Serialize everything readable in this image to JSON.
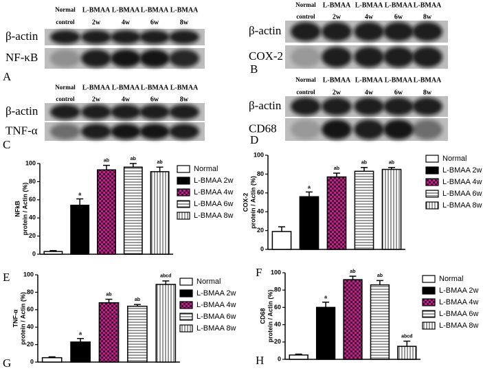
{
  "blots": [
    {
      "panel": "A",
      "columns": [
        [
          "Normal",
          "control"
        ],
        [
          "L-BMAA",
          "2w"
        ],
        [
          "L-BMAA",
          "4w"
        ],
        [
          "L-BMAA",
          "6w"
        ],
        [
          "L-BMAA",
          "8w"
        ]
      ],
      "rows": [
        "β-actin",
        "NF-κB"
      ]
    },
    {
      "panel": "B",
      "columns": [
        [
          "Normal",
          "control"
        ],
        [
          "L-BMAA",
          "2w"
        ],
        [
          "L-BMAA",
          "4w"
        ],
        [
          "L-BMAA",
          "6w"
        ],
        [
          "L-BMAA",
          "8w"
        ]
      ],
      "rows": [
        "β-actin",
        "COX-2"
      ]
    },
    {
      "panel": "C",
      "columns": [
        [
          "Normal",
          "control"
        ],
        [
          "L-BMAA",
          "2w"
        ],
        [
          "L-BMAA",
          "4w"
        ],
        [
          "L-BMAA",
          "6w"
        ],
        [
          "L-BMAA",
          "8w"
        ]
      ],
      "rows": [
        "β-actin",
        "TNF-α"
      ]
    },
    {
      "panel": "D",
      "columns": [
        [
          "Normal",
          "control"
        ],
        [
          "L-BMAA",
          "2w"
        ],
        [
          "L-BMAA",
          "4w"
        ],
        [
          "L-BMAA",
          "6w"
        ],
        [
          "L-BMAA",
          "8w"
        ]
      ],
      "rows": [
        "β-actin",
        "CD68"
      ]
    }
  ],
  "chart_data": [
    {
      "type": "bar",
      "panel": "E",
      "ylabel": [
        "NFkB",
        "protein / Actin (%)"
      ],
      "ylim": [
        0,
        100
      ],
      "yticks": [
        0,
        20,
        40,
        60,
        80,
        100
      ],
      "series": [
        {
          "name": "Normal",
          "color": "#ffffff",
          "pattern": "solid",
          "values": [
            3
          ],
          "errors": [
            1
          ]
        },
        {
          "name": "L-BMAA 2w",
          "color": "#000000",
          "pattern": "solid",
          "values": [
            54
          ],
          "errors": [
            7
          ],
          "annotation": "a"
        },
        {
          "name": "L-BMAA 4w",
          "color": "#c0208a",
          "pattern": "checker",
          "values": [
            93
          ],
          "errors": [
            5
          ],
          "annotation": "ab"
        },
        {
          "name": "L-BMAA 6w",
          "color": "#ffffff",
          "pattern": "hstripes",
          "values": [
            96
          ],
          "errors": [
            4
          ],
          "annotation": "ab"
        },
        {
          "name": "L-BMAA 8w",
          "color": "#ffffff",
          "pattern": "vstripes",
          "values": [
            91
          ],
          "errors": [
            5
          ],
          "annotation": "ab"
        }
      ]
    },
    {
      "type": "bar",
      "panel": "F",
      "ylabel": [
        "COX-2",
        "protein / Actin (%)"
      ],
      "ylim": [
        0,
        100
      ],
      "yticks": [
        0,
        20,
        40,
        60,
        80,
        100
      ],
      "series": [
        {
          "name": "Normal",
          "color": "#ffffff",
          "pattern": "solid",
          "values": [
            19
          ],
          "errors": [
            5
          ]
        },
        {
          "name": "L-BMAA 2w",
          "color": "#000000",
          "pattern": "solid",
          "values": [
            56
          ],
          "errors": [
            5
          ],
          "annotation": "a"
        },
        {
          "name": "L-BMAA 4w",
          "color": "#c0208a",
          "pattern": "checker",
          "values": [
            77
          ],
          "errors": [
            4
          ],
          "annotation": "ab"
        },
        {
          "name": "L-BMAA 6w",
          "color": "#ffffff",
          "pattern": "hstripes",
          "values": [
            83
          ],
          "errors": [
            4
          ],
          "annotation": "ab"
        },
        {
          "name": "L-BMAA 8w",
          "color": "#ffffff",
          "pattern": "vstripes",
          "values": [
            85
          ],
          "errors": [
            2
          ],
          "annotation": "ab"
        }
      ]
    },
    {
      "type": "bar",
      "panel": "G",
      "ylabel": [
        "TNF-α",
        "protein / Actin (%)"
      ],
      "ylim": [
        0,
        100
      ],
      "yticks": [
        0,
        20,
        40,
        60,
        80,
        100
      ],
      "series": [
        {
          "name": "Normal",
          "color": "#ffffff",
          "pattern": "solid",
          "values": [
            5
          ],
          "errors": [
            1
          ]
        },
        {
          "name": "L-BMAA 2w",
          "color": "#000000",
          "pattern": "solid",
          "values": [
            23
          ],
          "errors": [
            4
          ],
          "annotation": "a"
        },
        {
          "name": "L-BMAA 4w",
          "color": "#c0208a",
          "pattern": "checker",
          "values": [
            68
          ],
          "errors": [
            4
          ],
          "annotation": "ab"
        },
        {
          "name": "L-BMAA 6w",
          "color": "#ffffff",
          "pattern": "hstripes",
          "values": [
            64
          ],
          "errors": [
            2
          ],
          "annotation": "ab"
        },
        {
          "name": "L-BMAA 8w",
          "color": "#ffffff",
          "pattern": "vstripes",
          "values": [
            89
          ],
          "errors": [
            4
          ],
          "annotation": "abcd"
        }
      ]
    },
    {
      "type": "bar",
      "panel": "H",
      "ylabel": [
        "CD68",
        "protein / Actin (%)"
      ],
      "ylim": [
        0,
        100
      ],
      "yticks": [
        0,
        20,
        40,
        60,
        80,
        100
      ],
      "series": [
        {
          "name": "Normal",
          "color": "#ffffff",
          "pattern": "solid",
          "values": [
            5
          ],
          "errors": [
            1
          ]
        },
        {
          "name": "L-BMAA 2w",
          "color": "#000000",
          "pattern": "solid",
          "values": [
            60
          ],
          "errors": [
            6
          ],
          "annotation": "a"
        },
        {
          "name": "L-BMAA 4w",
          "color": "#c0208a",
          "pattern": "checker",
          "values": [
            92
          ],
          "errors": [
            4
          ],
          "annotation": "ab"
        },
        {
          "name": "L-BMAA 6w",
          "color": "#ffffff",
          "pattern": "hstripes",
          "values": [
            86
          ],
          "errors": [
            5
          ],
          "annotation": "ab"
        },
        {
          "name": "L-BMAA 8w",
          "color": "#ffffff",
          "pattern": "vstripes",
          "values": [
            15
          ],
          "errors": [
            6
          ],
          "annotation": "abcd"
        }
      ]
    }
  ]
}
